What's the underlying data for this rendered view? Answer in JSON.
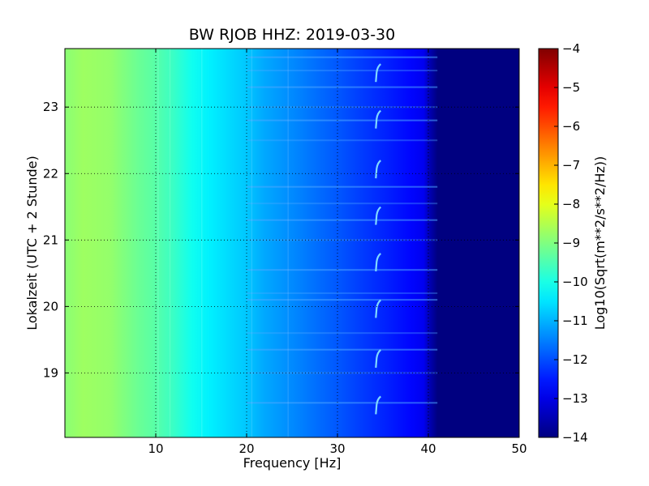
{
  "chart_data": {
    "type": "heatmap",
    "title": "BW RJOB HHZ: 2019-03-30",
    "xlabel": "Frequency [Hz]",
    "ylabel": "Lokalzeit (UTC + 2 Stunde)",
    "xlim": [
      0,
      50
    ],
    "ylim": [
      23.88,
      18.03
    ],
    "x_ticks": [
      10,
      20,
      30,
      40,
      50
    ],
    "y_ticks": [
      19,
      20,
      21,
      22,
      23
    ],
    "grid": true,
    "colormap": "jet",
    "colorbar": {
      "label": "Log10(Sqrt(m**2/s**2/Hz))",
      "range": [
        -14,
        -4
      ],
      "ticks": [
        -4,
        -5,
        -6,
        -7,
        -8,
        -9,
        -10,
        -11,
        -12,
        -13,
        -14
      ]
    },
    "intensity_profile": {
      "frequency_hz": [
        0,
        2,
        5,
        8,
        10,
        12,
        14,
        16,
        18,
        20,
        22,
        24,
        26,
        28,
        30,
        32,
        34,
        36,
        38,
        39.5,
        40,
        41,
        50
      ],
      "value": [
        -8.9,
        -8.7,
        -8.8,
        -9.2,
        -9.4,
        -9.7,
        -10.1,
        -10.4,
        -10.6,
        -10.8,
        -11.1,
        -11.3,
        -11.5,
        -11.7,
        -11.9,
        -12.1,
        -12.3,
        -12.5,
        -12.7,
        -12.9,
        -13.4,
        -14,
        -14
      ]
    },
    "annotations": {
      "hook_marks": {
        "frequency_hz": 34.4,
        "times": [
          18.5,
          19.2,
          19.95,
          20.65,
          21.35,
          22.05,
          22.8,
          23.5
        ]
      },
      "horizontal_lines_times": [
        18.55,
        19.0,
        19.35,
        19.6,
        20.1,
        20.2,
        20.55,
        21.0,
        21.3,
        21.55,
        21.8,
        22.5,
        22.8,
        23.0,
        23.3,
        23.55,
        23.75
      ]
    }
  },
  "colors": {
    "frame": "#000000",
    "grid": "#000000",
    "background": "#ffffff"
  }
}
